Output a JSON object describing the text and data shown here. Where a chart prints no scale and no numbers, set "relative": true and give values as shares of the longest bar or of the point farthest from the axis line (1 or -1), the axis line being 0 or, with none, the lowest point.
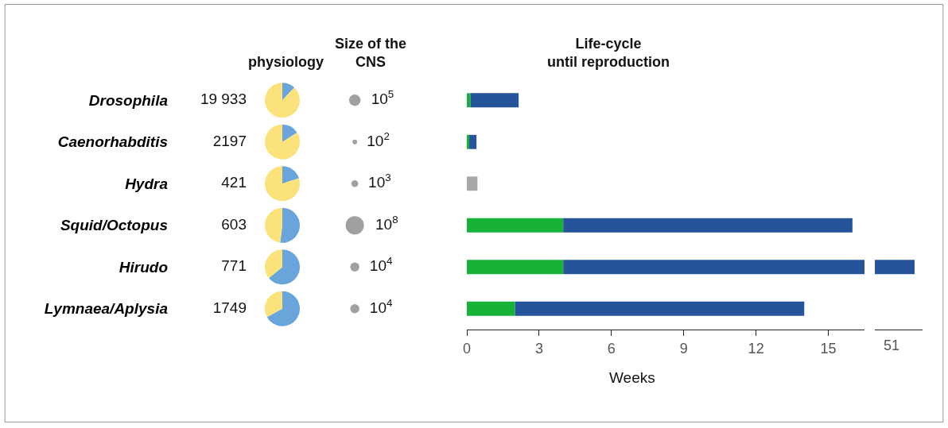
{
  "chart_data": [
    {
      "type": "other",
      "title": "physiology",
      "categories": [
        "Drosophila",
        "Caenorhabditis",
        "Hydra",
        "Squid/Octopus",
        "Hirudo",
        "Lymnaea/Aplysia"
      ],
      "values": [
        19933,
        2197,
        421,
        603,
        771,
        1749
      ],
      "value_labels": [
        "19 933",
        "2197",
        "421",
        "603",
        "771",
        "1749"
      ]
    },
    {
      "type": "pie",
      "categories": [
        null,
        null
      ],
      "values": [
        12,
        88
      ],
      "colors": [
        "#69a5da",
        "#fbe27a"
      ]
    },
    {
      "type": "pie",
      "categories": [
        null,
        null
      ],
      "values": [
        16,
        84
      ],
      "colors": [
        "#69a5da",
        "#fbe27a"
      ]
    },
    {
      "type": "pie",
      "categories": [
        null,
        null
      ],
      "values": [
        20,
        80
      ],
      "colors": [
        "#69a5da",
        "#fbe27a"
      ]
    },
    {
      "type": "pie",
      "categories": [
        null,
        null
      ],
      "values": [
        52,
        48
      ],
      "colors": [
        "#69a5da",
        "#fbe27a"
      ]
    },
    {
      "type": "pie",
      "categories": [
        null,
        null
      ],
      "values": [
        64,
        36
      ],
      "colors": [
        "#69a5da",
        "#fbe27a"
      ]
    },
    {
      "type": "pie",
      "categories": [
        null,
        null
      ],
      "values": [
        67,
        33
      ],
      "colors": [
        "#69a5da",
        "#fbe27a"
      ]
    },
    {
      "type": "other",
      "title": "Size of the\nCNS",
      "values": [
        100000,
        100,
        1000,
        100000000,
        10000,
        10000
      ],
      "value_labels": [
        "10$^{5}$",
        "10$^{2}$",
        "10$^{3}$",
        "10$^{8}$",
        "10$^{4}$",
        "10$^{4}$"
      ],
      "color": "#777777"
    },
    {
      "type": "bar",
      "orientation": "horizontal",
      "stacked": true,
      "title": "Life-cycle\nuntil reproduction",
      "xlabel": "Weeks",
      "categories": [
        null,
        null,
        null,
        null,
        null,
        null
      ],
      "xlim": [
        0,
        16.5
      ],
      "xticks": [
        0,
        3,
        6,
        9,
        12,
        15
      ],
      "tick_labels": "x",
      "series": [
        {
          "color": "#17b338",
          "values": [
            0.15,
            0.1,
            null,
            4,
            4,
            2
          ]
        },
        {
          "color": "#25549a",
          "values": [
            2.0,
            0.3,
            null,
            12.0,
            12.5,
            12.0
          ]
        },
        {
          "color": "#a9a9a9",
          "values": [
            null,
            null,
            0.44,
            null,
            null,
            null
          ]
        }
      ]
    },
    {
      "type": "bar",
      "orientation": "horizontal",
      "relative": true,
      "categories": [
        null,
        null,
        null,
        null,
        null,
        null
      ],
      "annotations": [
        "51"
      ],
      "tick_labels": false,
      "series": [
        {
          "color": "#25549a",
          "values": [
            null,
            null,
            null,
            null,
            1,
            null
          ]
        }
      ]
    }
  ]
}
